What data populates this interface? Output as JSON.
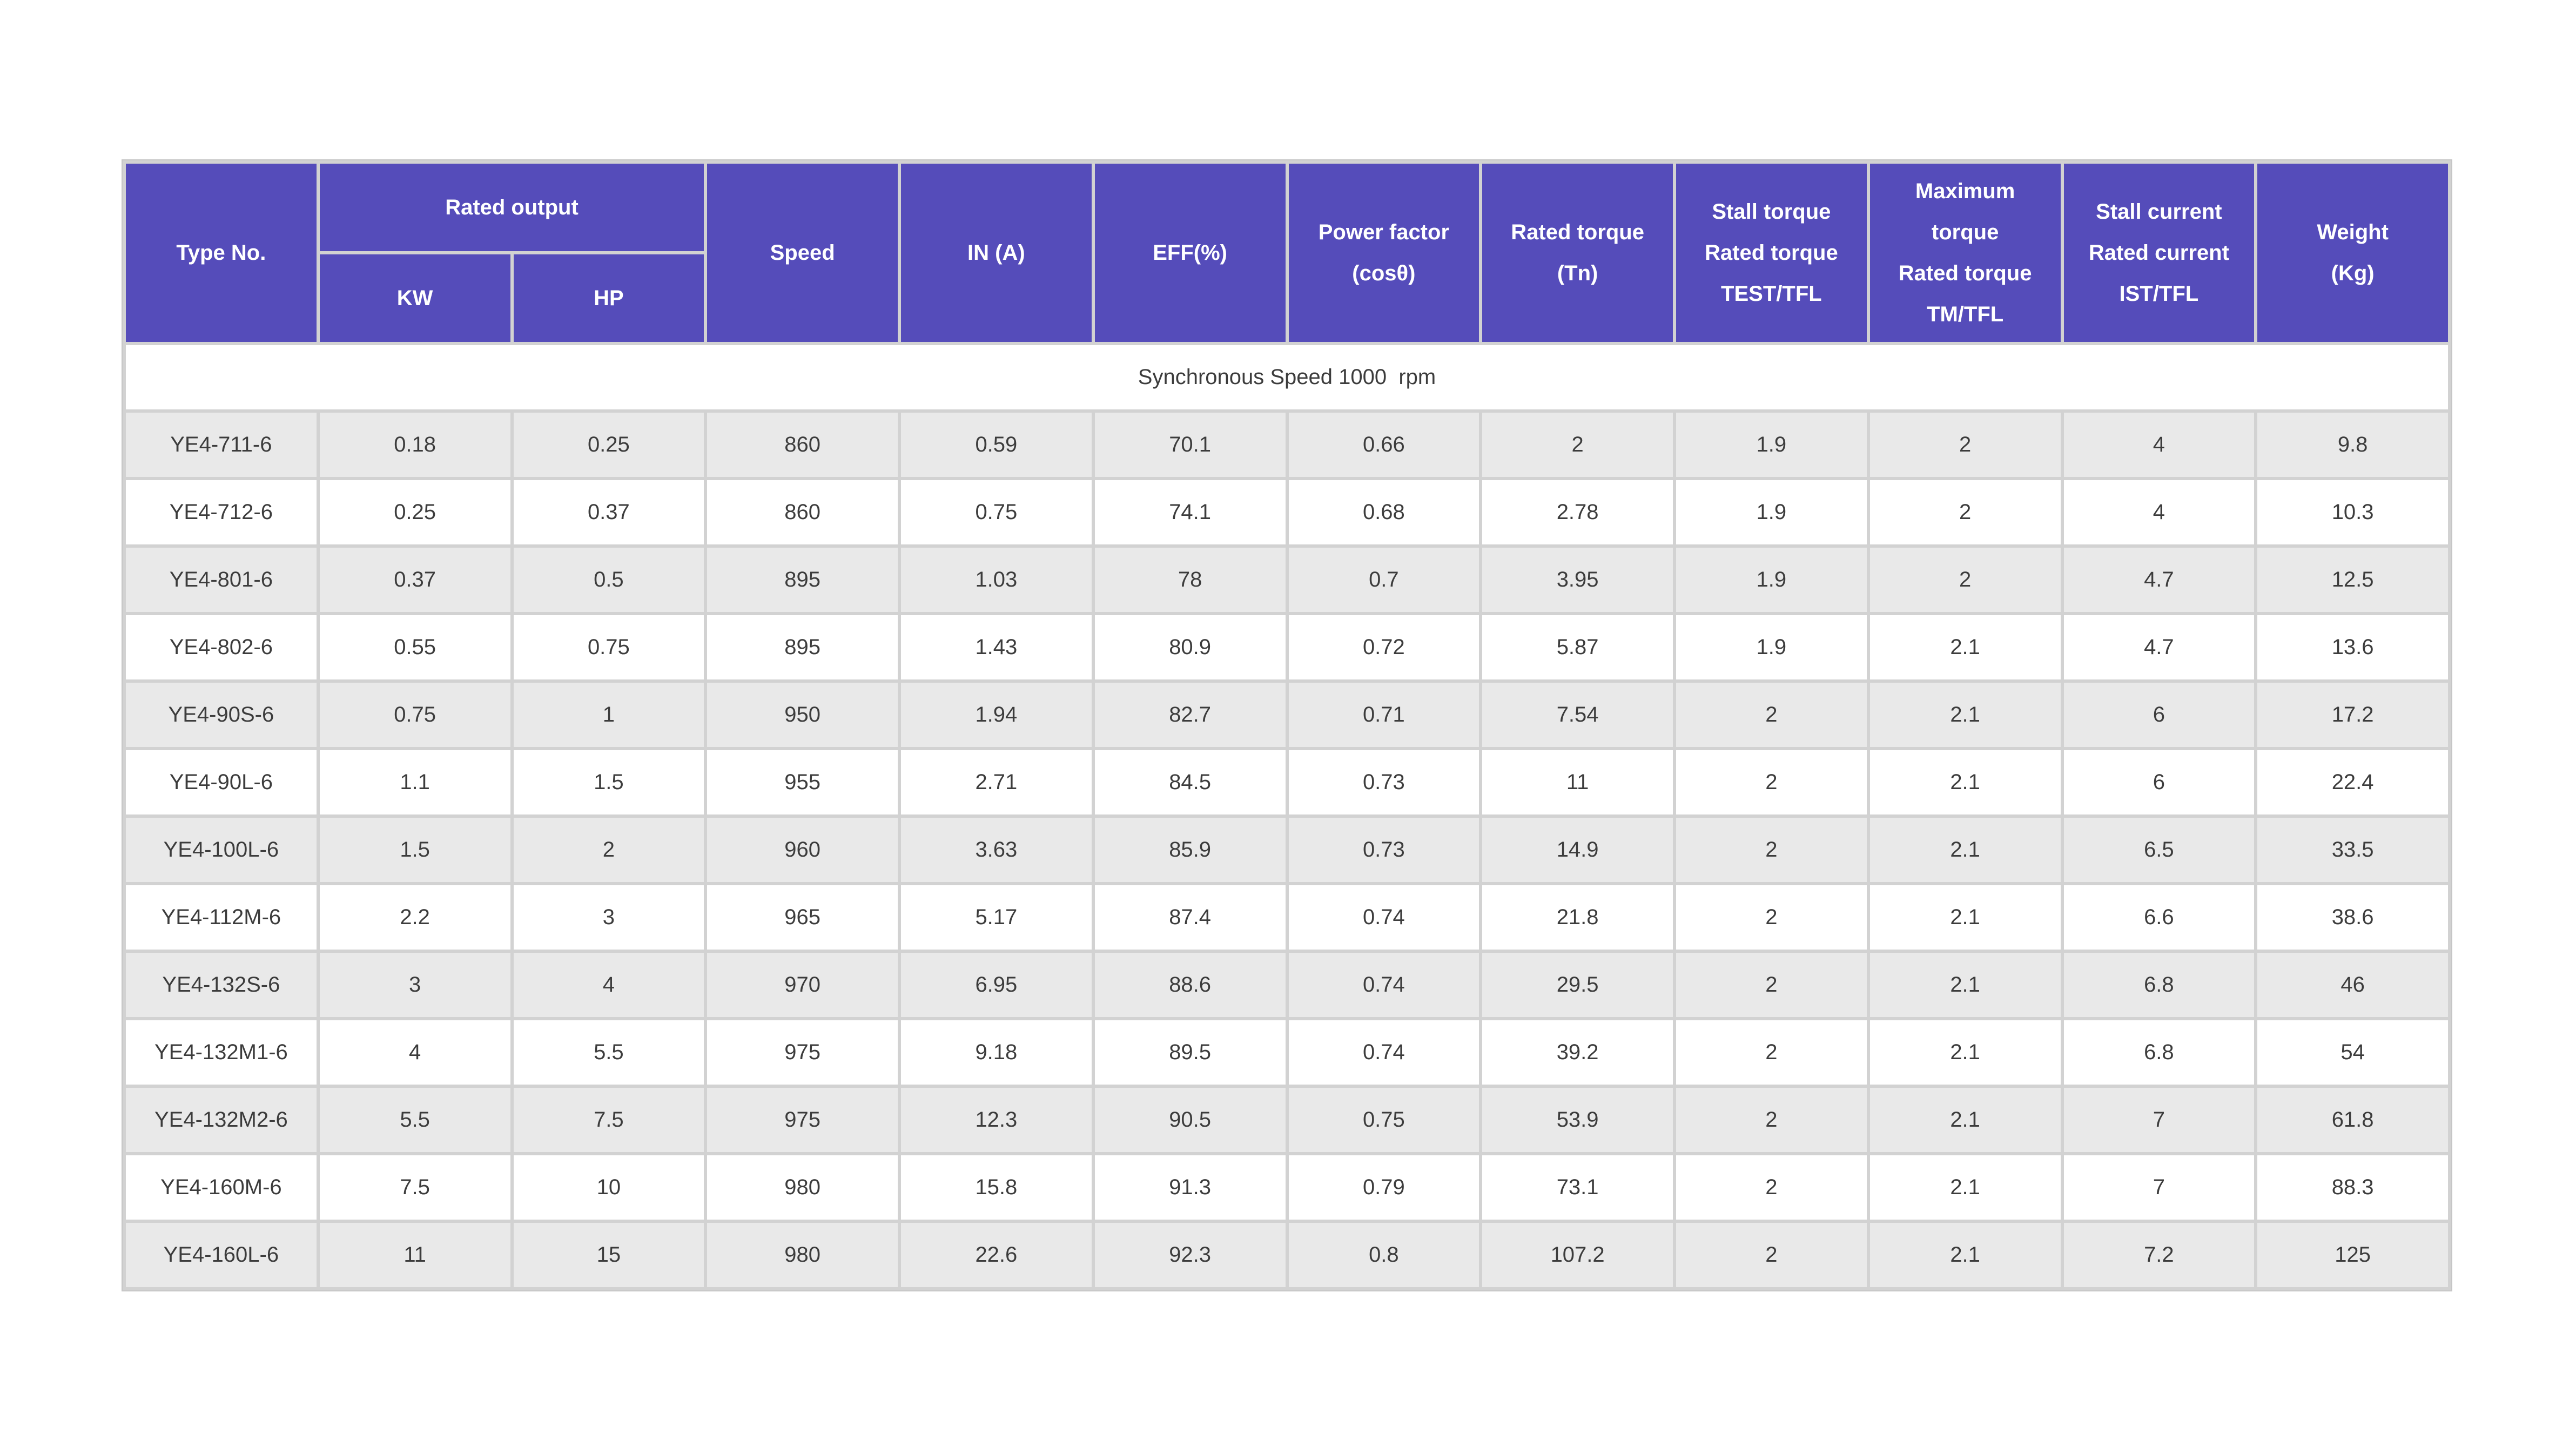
{
  "table": {
    "colors": {
      "header_bg": "#554CBA",
      "header_text": "#ffffff",
      "grid_line": "#d2d2d2",
      "row_alt_bg": "#e9e9e9",
      "row_bg": "#ffffff",
      "body_text": "#3c3c3c"
    },
    "header": {
      "type_no": "Type No.",
      "rated_output": "Rated output",
      "kw": "KW",
      "hp": "HP",
      "speed": "Speed",
      "in_a": "IN (A)",
      "eff": "EFF(%)",
      "power_factor": "Power factor\n(cosθ)",
      "rated_torque": "Rated torque\n(Tn)",
      "stall_torque": "Stall torque\nRated torque\nTEST/TFL",
      "maximum_torque": "Maximum\ntorque\nRated torque\nTM/TFL",
      "stall_current": "Stall current\nRated current\nIST/TFL",
      "weight": "Weight\n(Kg)"
    },
    "section_row": "Synchronous Speed 1000  rpm",
    "rows": [
      [
        "YE4-711-6",
        "0.18",
        "0.25",
        "860",
        "0.59",
        "70.1",
        "0.66",
        "2",
        "1.9",
        "2",
        "4",
        "9.8"
      ],
      [
        "YE4-712-6",
        "0.25",
        "0.37",
        "860",
        "0.75",
        "74.1",
        "0.68",
        "2.78",
        "1.9",
        "2",
        "4",
        "10.3"
      ],
      [
        "YE4-801-6",
        "0.37",
        "0.5",
        "895",
        "1.03",
        "78",
        "0.7",
        "3.95",
        "1.9",
        "2",
        "4.7",
        "12.5"
      ],
      [
        "YE4-802-6",
        "0.55",
        "0.75",
        "895",
        "1.43",
        "80.9",
        "0.72",
        "5.87",
        "1.9",
        "2.1",
        "4.7",
        "13.6"
      ],
      [
        "YE4-90S-6",
        "0.75",
        "1",
        "950",
        "1.94",
        "82.7",
        "0.71",
        "7.54",
        "2",
        "2.1",
        "6",
        "17.2"
      ],
      [
        "YE4-90L-6",
        "1.1",
        "1.5",
        "955",
        "2.71",
        "84.5",
        "0.73",
        "11",
        "2",
        "2.1",
        "6",
        "22.4"
      ],
      [
        "YE4-100L-6",
        "1.5",
        "2",
        "960",
        "3.63",
        "85.9",
        "0.73",
        "14.9",
        "2",
        "2.1",
        "6.5",
        "33.5"
      ],
      [
        "YE4-112M-6",
        "2.2",
        "3",
        "965",
        "5.17",
        "87.4",
        "0.74",
        "21.8",
        "2",
        "2.1",
        "6.6",
        "38.6"
      ],
      [
        "YE4-132S-6",
        "3",
        "4",
        "970",
        "6.95",
        "88.6",
        "0.74",
        "29.5",
        "2",
        "2.1",
        "6.8",
        "46"
      ],
      [
        "YE4-132M1-6",
        "4",
        "5.5",
        "975",
        "9.18",
        "89.5",
        "0.74",
        "39.2",
        "2",
        "2.1",
        "6.8",
        "54"
      ],
      [
        "YE4-132M2-6",
        "5.5",
        "7.5",
        "975",
        "12.3",
        "90.5",
        "0.75",
        "53.9",
        "2",
        "2.1",
        "7",
        "61.8"
      ],
      [
        "YE4-160M-6",
        "7.5",
        "10",
        "980",
        "15.8",
        "91.3",
        "0.79",
        "73.1",
        "2",
        "2.1",
        "7",
        "88.3"
      ],
      [
        "YE4-160L-6",
        "11",
        "15",
        "980",
        "22.6",
        "92.3",
        "0.8",
        "107.2",
        "2",
        "2.1",
        "7.2",
        "125"
      ]
    ]
  }
}
